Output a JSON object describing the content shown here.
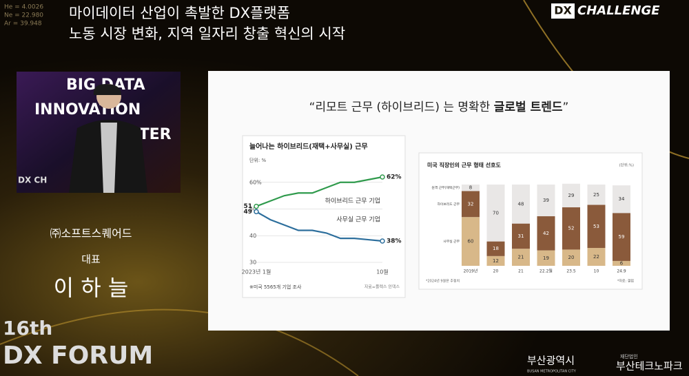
{
  "header": {
    "line1": "마이데이터 산업이 촉발한 DX플랫폼",
    "line2": "노동 시장 변화, 지역 일자리 창출 혁신의 시작",
    "badge": "DX",
    "badge_text": "CHALLENGE",
    "overlay": [
      "He = 4.0026",
      "Ne = 22.980",
      "Ar = 39.948"
    ]
  },
  "stage": {
    "screen": [
      "BIG DATA",
      "INNOVATION",
      "CENTER"
    ],
    "banner": "DX CH"
  },
  "speaker": {
    "company": "㈜소프트스퀘어드",
    "role": "대표",
    "name": "이 하 늘"
  },
  "forum": {
    "edition": "16th",
    "name": "DX FORUM"
  },
  "sponsors": {
    "city": "부산광역시",
    "city_en": "BUSAN METROPOLITAN CITY",
    "org_prefix": "재단법인",
    "org": "부산테크노파크"
  },
  "slide": {
    "quote": "“리모트 근무 (하이브리드) 는 명확한 ",
    "quote_bold": "글로벌 트렌드",
    "quote_end": "”"
  },
  "chart_data": [
    {
      "type": "line",
      "title": "늘어나는 하이브리드(재택+사무실) 근무",
      "unit": "단위: %",
      "categories": [
        "2023년 1월",
        null,
        null,
        null,
        null,
        null,
        null,
        null,
        null,
        "10월"
      ],
      "ylim": [
        30,
        62
      ],
      "yticks": [
        30,
        40,
        50,
        {
          "value": 60,
          "label": "60%"
        }
      ],
      "series": [
        {
          "name": "하이브리드 근무 기업",
          "color": "#2f9a4c",
          "values": [
            51,
            53,
            55,
            56,
            56,
            58,
            60,
            60,
            61,
            62
          ],
          "value_labels": [
            "51",
            null,
            null,
            null,
            null,
            null,
            null,
            null,
            null,
            "62%"
          ]
        },
        {
          "name": "사무실 근무 기업",
          "color": "#2c6e9c",
          "values": [
            49,
            46,
            44,
            42,
            42,
            41,
            39,
            39,
            38.5,
            38
          ],
          "value_labels": [
            "49",
            null,
            null,
            null,
            null,
            null,
            null,
            null,
            null,
            "38%"
          ]
        }
      ],
      "note": "※미국 5565개 기업 조사",
      "source": "자료=플렉스 인덱스"
    },
    {
      "type": "stacked_bar",
      "title": "미국 직장인의 근무 형태 선호도",
      "unit": "(단위:%)",
      "categories": [
        "2019년",
        "20",
        "21",
        "22.2월",
        "23.5",
        "10",
        "24.9"
      ],
      "ylim": [
        0,
        100
      ],
      "series": [
        {
          "name": "사무실 근무",
          "color": "#d8b889",
          "values": [
            60,
            12,
            21,
            19,
            20,
            22,
            6
          ]
        },
        {
          "name": "하이브리드 근무",
          "color": "#8a5a3b",
          "values": [
            32,
            18,
            31,
            42,
            52,
            53,
            59
          ]
        },
        {
          "name": "원격 근무(재택근무)",
          "color": "#e9e7e6",
          "values": [
            8,
            70,
            48,
            39,
            29,
            25,
            34
          ]
        }
      ],
      "note": "*2024년 9월은 추정치",
      "source": "*자료: 갤럽"
    }
  ]
}
